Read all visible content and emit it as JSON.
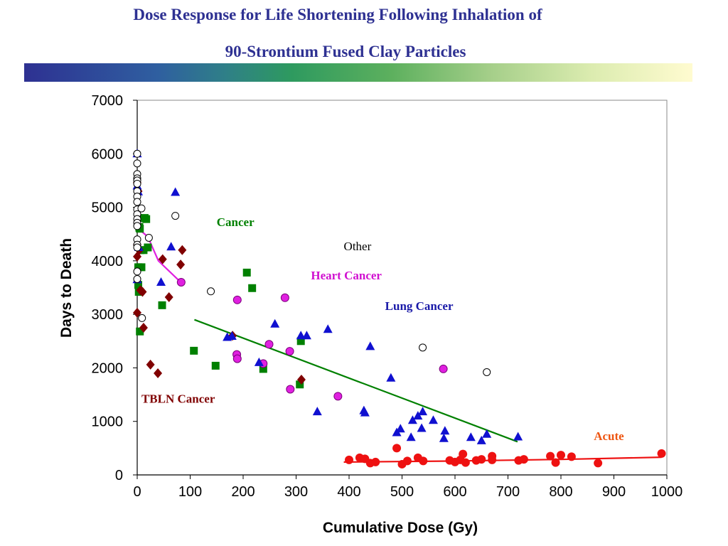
{
  "title_line1": "Dose Response for Life Shortening Following Inhalation of",
  "title_line2": "90-Strontium Fused Clay Particles",
  "colors": {
    "title": "#2e3192",
    "cancer": "#008000",
    "heart": "#e020e0",
    "lung": "#1010d0",
    "tbln": "#800000",
    "acute": "#ee1111",
    "other": "#000000",
    "lung_label": "#1a1aa8",
    "heart_label": "#d010d0",
    "acute_label": "#ee5511"
  },
  "chart_data": {
    "type": "scatter",
    "xlabel": "Cumulative Dose (Gy)",
    "ylabel": "Days to Death",
    "xlim": [
      0,
      1000
    ],
    "ylim": [
      0,
      7000
    ],
    "xticks": [
      0,
      100,
      200,
      300,
      400,
      500,
      600,
      700,
      800,
      900,
      1000
    ],
    "yticks": [
      0,
      1000,
      2000,
      3000,
      4000,
      5000,
      6000,
      7000
    ],
    "grid": false,
    "annotations": [
      {
        "text": "Cancer",
        "x": 150,
        "y": 4650,
        "color": "cancer",
        "bold": true
      },
      {
        "text": "Other",
        "x": 390,
        "y": 4200,
        "color": "other",
        "bold": false
      },
      {
        "text": "Heart Cancer",
        "x": 328,
        "y": 3650,
        "color": "heart_label",
        "bold": true
      },
      {
        "text": "Lung Cancer",
        "x": 468,
        "y": 3080,
        "color": "lung_label",
        "bold": true
      },
      {
        "text": "TBLN Cancer",
        "x": 8,
        "y": 1350,
        "color": "tbln",
        "bold": true
      },
      {
        "text": "Acute",
        "x": 862,
        "y": 650,
        "color": "acute_label",
        "bold": true
      }
    ],
    "trend_lines": [
      {
        "name": "cancer",
        "color": "cancer",
        "points": [
          [
            108,
            2900
          ],
          [
            718,
            620
          ]
        ]
      },
      {
        "name": "heart",
        "color": "heart",
        "points": [
          [
            0,
            4620
          ],
          [
            20,
            4450
          ],
          [
            40,
            4000
          ],
          [
            80,
            3620
          ]
        ]
      },
      {
        "name": "acute",
        "color": "acute",
        "points": [
          [
            390,
            240
          ],
          [
            600,
            260
          ],
          [
            800,
            290
          ],
          [
            990,
            330
          ]
        ]
      }
    ],
    "series": [
      {
        "name": "Cancer",
        "marker": "square",
        "color": "cancer",
        "x": [
          2,
          4,
          8,
          14,
          17,
          20,
          4,
          5,
          2,
          3,
          6,
          47,
          107,
          148,
          207,
          217,
          238,
          307,
          309,
          2,
          12,
          5
        ],
        "y": [
          4800,
          4620,
          3880,
          4800,
          4780,
          4250,
          4630,
          2680,
          3550,
          3420,
          4200,
          3170,
          2320,
          2040,
          3780,
          3490,
          1980,
          1690,
          2500,
          3880,
          4200,
          4600
        ]
      },
      {
        "name": "TBLN Cancer",
        "marker": "diamond",
        "color": "tbln",
        "x": [
          0,
          2,
          4,
          6,
          10,
          12,
          25,
          39,
          48,
          60,
          82,
          85,
          180,
          310,
          0,
          0,
          0
        ],
        "y": [
          5460,
          5300,
          4200,
          3450,
          3420,
          2750,
          2060,
          1900,
          4030,
          3320,
          3930,
          4200,
          2600,
          1780,
          4080,
          3030,
          4300
        ]
      },
      {
        "name": "Heart Cancer",
        "marker": "circle-filled",
        "color": "heart",
        "x": [
          83,
          189,
          188,
          189,
          238,
          249,
          279,
          288,
          289,
          379,
          578
        ],
        "y": [
          3600,
          3270,
          2250,
          2170,
          2080,
          2440,
          3310,
          2310,
          1600,
          1470,
          1980
        ]
      },
      {
        "name": "Lung Cancer",
        "marker": "triangle",
        "color": "lung",
        "x": [
          0,
          0,
          0,
          2,
          3,
          45,
          64,
          72,
          170,
          179,
          230,
          260,
          309,
          320,
          340,
          360,
          428,
          430,
          440,
          479,
          490,
          497,
          517,
          520,
          530,
          537,
          539,
          559,
          579,
          581,
          630,
          650,
          660,
          719
        ],
        "y": [
          6000,
          5400,
          3650,
          5290,
          4250,
          3600,
          4260,
          5280,
          2570,
          2590,
          2100,
          2820,
          2600,
          2600,
          1180,
          2720,
          1200,
          1160,
          2400,
          1810,
          790,
          860,
          700,
          1020,
          1100,
          870,
          1180,
          1020,
          680,
          820,
          700,
          640,
          760,
          710
        ]
      },
      {
        "name": "Acute",
        "marker": "circle-filled",
        "color": "acute",
        "x": [
          400,
          420,
          430,
          440,
          450,
          490,
          500,
          510,
          530,
          540,
          590,
          600,
          610,
          615,
          620,
          640,
          650,
          670,
          670,
          720,
          730,
          780,
          790,
          800,
          820,
          870,
          990
        ],
        "y": [
          280,
          320,
          300,
          220,
          240,
          500,
          200,
          260,
          320,
          260,
          270,
          240,
          280,
          390,
          230,
          270,
          290,
          350,
          280,
          270,
          290,
          350,
          230,
          370,
          340,
          220,
          400
        ]
      },
      {
        "name": "Other",
        "marker": "circle-open",
        "color": "other",
        "x": [
          0,
          0,
          0,
          0,
          0,
          0,
          0,
          0,
          0,
          0,
          0,
          0,
          0,
          0,
          0,
          0,
          0,
          0,
          0,
          8,
          9,
          22,
          72,
          139,
          539,
          660
        ],
        "y": [
          6000,
          5820,
          5620,
          5540,
          5500,
          5440,
          5300,
          5200,
          5100,
          4960,
          4870,
          4780,
          4710,
          4650,
          4400,
          4300,
          4250,
          3800,
          3660,
          4980,
          2930,
          4430,
          4840,
          3430,
          2380,
          1920
        ]
      }
    ]
  }
}
